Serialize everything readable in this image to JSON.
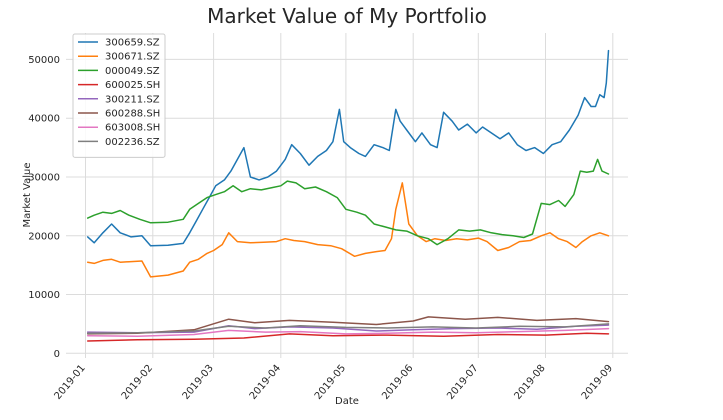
{
  "chart_data": {
    "type": "line",
    "title": "Market Value of My Portfolio",
    "xlabel": "Date",
    "ylabel": "Market Value",
    "xlim": [
      "2018-12-23",
      "2019-09-08"
    ],
    "ylim": [
      -800,
      54500
    ],
    "grid": true,
    "legend_position": "top-left",
    "x_ticks": [
      {
        "date": "2019-01-01",
        "label": "2019-01"
      },
      {
        "date": "2019-02-01",
        "label": "2019-02"
      },
      {
        "date": "2019-03-01",
        "label": "2019-03"
      },
      {
        "date": "2019-04-01",
        "label": "2019-04"
      },
      {
        "date": "2019-05-01",
        "label": "2019-05"
      },
      {
        "date": "2019-06-01",
        "label": "2019-06"
      },
      {
        "date": "2019-07-01",
        "label": "2019-07"
      },
      {
        "date": "2019-08-01",
        "label": "2019-08"
      },
      {
        "date": "2019-09-01",
        "label": "2019-09"
      }
    ],
    "y_ticks": [
      0,
      10000,
      20000,
      30000,
      40000,
      50000
    ],
    "series": [
      {
        "name": "300659.SZ",
        "color": "#1f77b4",
        "points": [
          [
            "2019-01-02",
            19800
          ],
          [
            "2019-01-05",
            18800
          ],
          [
            "2019-01-09",
            20500
          ],
          [
            "2019-01-13",
            22000
          ],
          [
            "2019-01-17",
            20500
          ],
          [
            "2019-01-22",
            19800
          ],
          [
            "2019-01-27",
            20000
          ],
          [
            "2019-01-31",
            18300
          ],
          [
            "2019-02-08",
            18400
          ],
          [
            "2019-02-15",
            18700
          ],
          [
            "2019-02-18",
            20500
          ],
          [
            "2019-02-21",
            22500
          ],
          [
            "2019-02-24",
            24500
          ],
          [
            "2019-02-27",
            26500
          ],
          [
            "2019-03-02",
            28500
          ],
          [
            "2019-03-06",
            29500
          ],
          [
            "2019-03-09",
            31000
          ],
          [
            "2019-03-12",
            33000
          ],
          [
            "2019-03-15",
            35000
          ],
          [
            "2019-03-18",
            30000
          ],
          [
            "2019-03-22",
            29500
          ],
          [
            "2019-03-26",
            30000
          ],
          [
            "2019-03-30",
            31000
          ],
          [
            "2019-04-03",
            33000
          ],
          [
            "2019-04-06",
            35500
          ],
          [
            "2019-04-10",
            34000
          ],
          [
            "2019-04-14",
            32000
          ],
          [
            "2019-04-18",
            33500
          ],
          [
            "2019-04-22",
            34500
          ],
          [
            "2019-04-25",
            36000
          ],
          [
            "2019-04-28",
            41500
          ],
          [
            "2019-04-30",
            36000
          ],
          [
            "2019-05-03",
            35000
          ],
          [
            "2019-05-07",
            34000
          ],
          [
            "2019-05-10",
            33500
          ],
          [
            "2019-05-14",
            35500
          ],
          [
            "2019-05-18",
            35000
          ],
          [
            "2019-05-21",
            34500
          ],
          [
            "2019-05-24",
            41500
          ],
          [
            "2019-05-26",
            39500
          ],
          [
            "2019-05-29",
            38000
          ],
          [
            "2019-06-02",
            36000
          ],
          [
            "2019-06-05",
            37500
          ],
          [
            "2019-06-09",
            35500
          ],
          [
            "2019-06-12",
            35000
          ],
          [
            "2019-06-15",
            41000
          ],
          [
            "2019-06-19",
            39500
          ],
          [
            "2019-06-22",
            38000
          ],
          [
            "2019-06-26",
            39000
          ],
          [
            "2019-06-30",
            37500
          ],
          [
            "2019-07-03",
            38500
          ],
          [
            "2019-07-07",
            37500
          ],
          [
            "2019-07-11",
            36500
          ],
          [
            "2019-07-15",
            37500
          ],
          [
            "2019-07-19",
            35500
          ],
          [
            "2019-07-23",
            34500
          ],
          [
            "2019-07-27",
            35000
          ],
          [
            "2019-07-31",
            34000
          ],
          [
            "2019-08-04",
            35500
          ],
          [
            "2019-08-08",
            36000
          ],
          [
            "2019-08-12",
            38000
          ],
          [
            "2019-08-16",
            40500
          ],
          [
            "2019-08-19",
            43500
          ],
          [
            "2019-08-22",
            42000
          ],
          [
            "2019-08-24",
            42000
          ],
          [
            "2019-08-26",
            44000
          ],
          [
            "2019-08-28",
            43500
          ],
          [
            "2019-08-29",
            46000
          ],
          [
            "2019-08-30",
            51500
          ]
        ]
      },
      {
        "name": "300671.SZ",
        "color": "#ff7f0e",
        "points": [
          [
            "2019-01-02",
            15500
          ],
          [
            "2019-01-05",
            15300
          ],
          [
            "2019-01-09",
            15800
          ],
          [
            "2019-01-13",
            16000
          ],
          [
            "2019-01-17",
            15500
          ],
          [
            "2019-01-22",
            15600
          ],
          [
            "2019-01-27",
            15700
          ],
          [
            "2019-01-31",
            13000
          ],
          [
            "2019-02-08",
            13300
          ],
          [
            "2019-02-15",
            14000
          ],
          [
            "2019-02-18",
            15500
          ],
          [
            "2019-02-22",
            16000
          ],
          [
            "2019-02-26",
            17000
          ],
          [
            "2019-03-01",
            17500
          ],
          [
            "2019-03-05",
            18500
          ],
          [
            "2019-03-08",
            20500
          ],
          [
            "2019-03-12",
            19000
          ],
          [
            "2019-03-18",
            18800
          ],
          [
            "2019-03-24",
            18900
          ],
          [
            "2019-03-30",
            19000
          ],
          [
            "2019-04-03",
            19500
          ],
          [
            "2019-04-07",
            19200
          ],
          [
            "2019-04-12",
            19000
          ],
          [
            "2019-04-18",
            18500
          ],
          [
            "2019-04-24",
            18300
          ],
          [
            "2019-04-29",
            17800
          ],
          [
            "2019-05-05",
            16500
          ],
          [
            "2019-05-10",
            17000
          ],
          [
            "2019-05-15",
            17300
          ],
          [
            "2019-05-19",
            17500
          ],
          [
            "2019-05-22",
            19500
          ],
          [
            "2019-05-24",
            24500
          ],
          [
            "2019-05-27",
            29000
          ],
          [
            "2019-05-30",
            22000
          ],
          [
            "2019-06-03",
            20000
          ],
          [
            "2019-06-07",
            19000
          ],
          [
            "2019-06-11",
            19500
          ],
          [
            "2019-06-16",
            19200
          ],
          [
            "2019-06-21",
            19500
          ],
          [
            "2019-06-26",
            19300
          ],
          [
            "2019-07-01",
            19600
          ],
          [
            "2019-07-05",
            19000
          ],
          [
            "2019-07-10",
            17500
          ],
          [
            "2019-07-15",
            18000
          ],
          [
            "2019-07-20",
            19000
          ],
          [
            "2019-07-25",
            19200
          ],
          [
            "2019-07-30",
            20000
          ],
          [
            "2019-08-03",
            20500
          ],
          [
            "2019-08-07",
            19500
          ],
          [
            "2019-08-11",
            19000
          ],
          [
            "2019-08-15",
            18000
          ],
          [
            "2019-08-18",
            19000
          ],
          [
            "2019-08-22",
            20000
          ],
          [
            "2019-08-26",
            20500
          ],
          [
            "2019-08-30",
            20000
          ]
        ]
      },
      {
        "name": "000049.SZ",
        "color": "#2ca02c",
        "points": [
          [
            "2019-01-02",
            23000
          ],
          [
            "2019-01-05",
            23500
          ],
          [
            "2019-01-09",
            24000
          ],
          [
            "2019-01-13",
            23800
          ],
          [
            "2019-01-17",
            24300
          ],
          [
            "2019-01-21",
            23500
          ],
          [
            "2019-01-26",
            22800
          ],
          [
            "2019-01-31",
            22200
          ],
          [
            "2019-02-08",
            22300
          ],
          [
            "2019-02-15",
            22800
          ],
          [
            "2019-02-18",
            24500
          ],
          [
            "2019-02-22",
            25500
          ],
          [
            "2019-02-26",
            26500
          ],
          [
            "2019-03-02",
            27000
          ],
          [
            "2019-03-06",
            27500
          ],
          [
            "2019-03-10",
            28500
          ],
          [
            "2019-03-14",
            27500
          ],
          [
            "2019-03-18",
            28000
          ],
          [
            "2019-03-23",
            27800
          ],
          [
            "2019-03-28",
            28200
          ],
          [
            "2019-04-01",
            28500
          ],
          [
            "2019-04-04",
            29300
          ],
          [
            "2019-04-08",
            29000
          ],
          [
            "2019-04-12",
            28000
          ],
          [
            "2019-04-17",
            28300
          ],
          [
            "2019-04-22",
            27500
          ],
          [
            "2019-04-27",
            26500
          ],
          [
            "2019-05-01",
            24500
          ],
          [
            "2019-05-06",
            24000
          ],
          [
            "2019-05-10",
            23500
          ],
          [
            "2019-05-14",
            22000
          ],
          [
            "2019-05-19",
            21500
          ],
          [
            "2019-05-24",
            21000
          ],
          [
            "2019-05-29",
            20800
          ],
          [
            "2019-06-03",
            20000
          ],
          [
            "2019-06-08",
            19500
          ],
          [
            "2019-06-12",
            18500
          ],
          [
            "2019-06-17",
            19500
          ],
          [
            "2019-06-22",
            21000
          ],
          [
            "2019-06-27",
            20800
          ],
          [
            "2019-07-02",
            21000
          ],
          [
            "2019-07-07",
            20500
          ],
          [
            "2019-07-12",
            20200
          ],
          [
            "2019-07-17",
            20000
          ],
          [
            "2019-07-22",
            19700
          ],
          [
            "2019-07-26",
            20300
          ],
          [
            "2019-07-30",
            25500
          ],
          [
            "2019-08-03",
            25300
          ],
          [
            "2019-08-07",
            26000
          ],
          [
            "2019-08-10",
            25000
          ],
          [
            "2019-08-14",
            27000
          ],
          [
            "2019-08-17",
            31000
          ],
          [
            "2019-08-20",
            30800
          ],
          [
            "2019-08-23",
            31000
          ],
          [
            "2019-08-25",
            33000
          ],
          [
            "2019-08-27",
            31000
          ],
          [
            "2019-08-30",
            30500
          ]
        ]
      },
      {
        "name": "600025.SH",
        "color": "#d62728",
        "points": [
          [
            "2019-01-02",
            2100
          ],
          [
            "2019-01-25",
            2300
          ],
          [
            "2019-02-20",
            2400
          ],
          [
            "2019-03-15",
            2600
          ],
          [
            "2019-04-05",
            3300
          ],
          [
            "2019-04-25",
            3000
          ],
          [
            "2019-05-20",
            3100
          ],
          [
            "2019-06-15",
            2900
          ],
          [
            "2019-07-10",
            3200
          ],
          [
            "2019-08-01",
            3100
          ],
          [
            "2019-08-20",
            3400
          ],
          [
            "2019-08-30",
            3300
          ]
        ]
      },
      {
        "name": "300211.SZ",
        "color": "#9467bd",
        "points": [
          [
            "2019-01-02",
            3600
          ],
          [
            "2019-01-25",
            3500
          ],
          [
            "2019-02-20",
            3600
          ],
          [
            "2019-03-08",
            4700
          ],
          [
            "2019-03-20",
            4200
          ],
          [
            "2019-04-05",
            4500
          ],
          [
            "2019-04-25",
            4300
          ],
          [
            "2019-05-15",
            3800
          ],
          [
            "2019-06-01",
            4000
          ],
          [
            "2019-06-20",
            4200
          ],
          [
            "2019-07-10",
            4300
          ],
          [
            "2019-07-28",
            4100
          ],
          [
            "2019-08-15",
            4600
          ],
          [
            "2019-08-30",
            4800
          ]
        ]
      },
      {
        "name": "600288.SH",
        "color": "#8c564b",
        "points": [
          [
            "2019-01-02",
            3300
          ],
          [
            "2019-01-25",
            3400
          ],
          [
            "2019-02-20",
            4000
          ],
          [
            "2019-03-08",
            5800
          ],
          [
            "2019-03-20",
            5200
          ],
          [
            "2019-04-05",
            5600
          ],
          [
            "2019-04-25",
            5300
          ],
          [
            "2019-05-15",
            4900
          ],
          [
            "2019-06-01",
            5500
          ],
          [
            "2019-06-08",
            6200
          ],
          [
            "2019-06-25",
            5800
          ],
          [
            "2019-07-10",
            6100
          ],
          [
            "2019-07-28",
            5600
          ],
          [
            "2019-08-15",
            5900
          ],
          [
            "2019-08-30",
            5400
          ]
        ]
      },
      {
        "name": "603008.SH",
        "color": "#e377c2",
        "points": [
          [
            "2019-01-02",
            3000
          ],
          [
            "2019-01-25",
            2900
          ],
          [
            "2019-02-20",
            3200
          ],
          [
            "2019-03-08",
            3900
          ],
          [
            "2019-03-25",
            3600
          ],
          [
            "2019-04-10",
            3700
          ],
          [
            "2019-05-01",
            3300
          ],
          [
            "2019-05-20",
            3400
          ],
          [
            "2019-06-10",
            3600
          ],
          [
            "2019-06-30",
            3500
          ],
          [
            "2019-07-20",
            3700
          ],
          [
            "2019-08-10",
            3900
          ],
          [
            "2019-08-30",
            4200
          ]
        ]
      },
      {
        "name": "002236.SZ",
        "color": "#7f7f7f",
        "points": [
          [
            "2019-01-02",
            3400
          ],
          [
            "2019-01-25",
            3500
          ],
          [
            "2019-02-20",
            3800
          ],
          [
            "2019-03-08",
            4600
          ],
          [
            "2019-03-25",
            4300
          ],
          [
            "2019-04-10",
            4700
          ],
          [
            "2019-05-01",
            4400
          ],
          [
            "2019-05-20",
            4300
          ],
          [
            "2019-06-10",
            4500
          ],
          [
            "2019-06-30",
            4300
          ],
          [
            "2019-07-20",
            4600
          ],
          [
            "2019-08-10",
            4500
          ],
          [
            "2019-08-30",
            5000
          ]
        ]
      }
    ]
  }
}
